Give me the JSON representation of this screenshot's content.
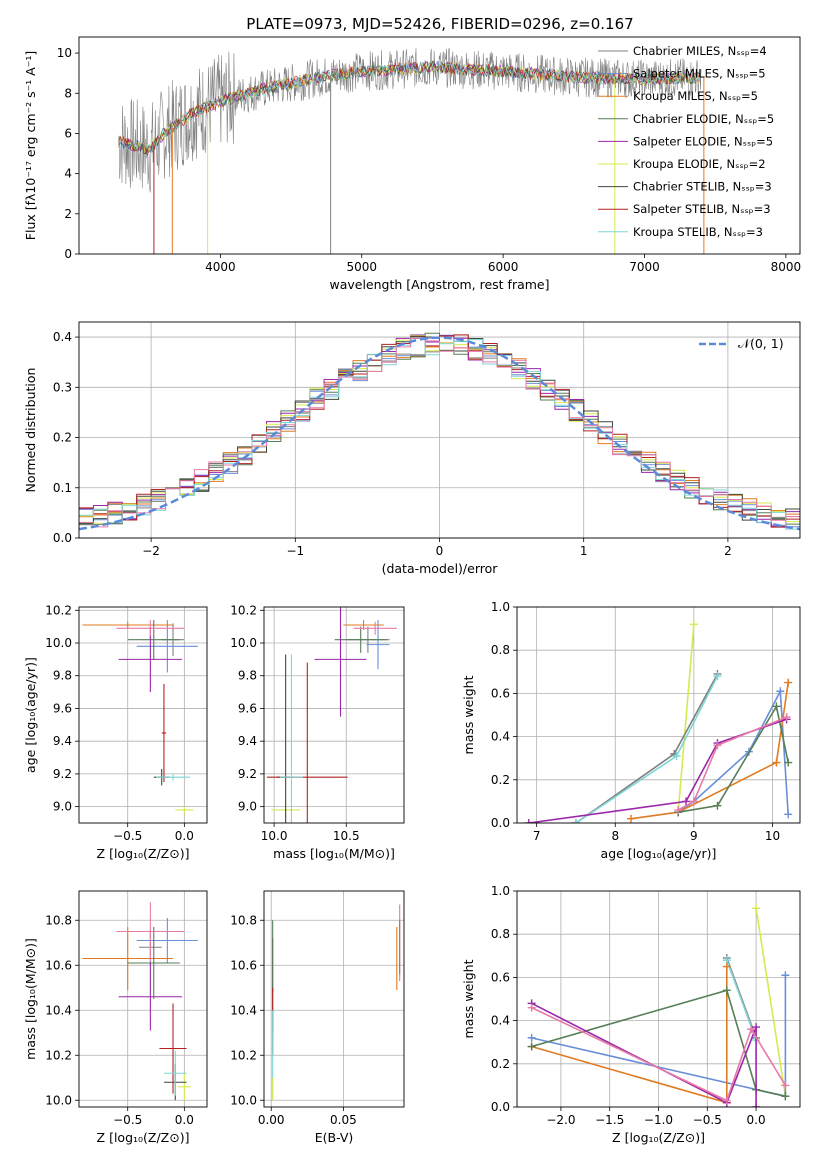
{
  "figure_title": "PLATE=0973, MJD=52426, FIBERID=0296, z=0.167",
  "colors": {
    "Chabrier MILES": "#808080",
    "Salpeter MILES": "#6a8fd8",
    "Kroupa MILES": "#e07b22",
    "Chabrier ELODIE": "#567f56",
    "Salpeter ELODIE": "#9b27a9",
    "Kroupa ELODIE": "#d7e94f",
    "Chabrier STELIB": "#3e4a3e",
    "Salpeter STELIB": "#b22222",
    "Kroupa STELIB": "#7fd6d6",
    "pinkish": "#e87aa8",
    "gaussian": "#5b8ad8"
  },
  "chart_data": [
    {
      "id": "spectrum",
      "type": "line",
      "title": "PLATE=0973, MJD=52426, FIBERID=0296, z=0.167",
      "xlabel": "wavelength [Angstrom, rest frame]",
      "ylabel": "Flux [fλ10⁻¹⁷ erg cm⁻² s⁻¹ A⁻¹]",
      "xlim": [
        3000,
        8100
      ],
      "ylim": [
        0,
        10.8
      ],
      "xticks": [
        "4000",
        "5000",
        "6000",
        "7000",
        "8000"
      ],
      "yticks": [
        "0",
        "2",
        "4",
        "6",
        "8",
        "10"
      ],
      "grid": false,
      "legend_position": "right",
      "legend": [
        "Chabrier MILES, Nₛₛₚ=4",
        "Salpeter MILES, Nₛₛₚ=5",
        "Kroupa MILES, Nₛₛₚ=5",
        "Chabrier ELODIE, Nₛₛₚ=5",
        "Salpeter ELODIE, Nₛₛₚ=5",
        "Kroupa ELODIE, Nₛₛₚ=2",
        "Chabrier STELIB, Nₛₛₚ=3",
        "Salpeter STELIB, Nₛₛₚ=3",
        "Kroupa STELIB, Nₛₛₚ=3"
      ],
      "continuum": [
        [
          3280,
          5.6
        ],
        [
          3500,
          5.2
        ],
        [
          3600,
          6.0
        ],
        [
          3800,
          7.0
        ],
        [
          4000,
          7.6
        ],
        [
          4300,
          8.2
        ],
        [
          4700,
          8.8
        ],
        [
          5000,
          9.1
        ],
        [
          5500,
          9.3
        ],
        [
          6000,
          9.1
        ],
        [
          6500,
          8.8
        ],
        [
          7000,
          8.7
        ],
        [
          7400,
          8.8
        ]
      ]
    },
    {
      "id": "residuals",
      "type": "bar",
      "xlabel": "(data-model)/error",
      "ylabel": "Normed distribution",
      "xlim": [
        -2.5,
        2.5
      ],
      "ylim": [
        0,
        0.43
      ],
      "xticks": [
        "−2",
        "−1",
        "0",
        "1",
        "2"
      ],
      "yticks": [
        "0.0",
        "0.1",
        "0.2",
        "0.3",
        "0.4"
      ],
      "grid": true,
      "legend_position": "top-right",
      "legend": [
        "𝒩(0, 1)"
      ],
      "gaussian": {
        "mean": 0,
        "sigma": 1
      }
    },
    {
      "id": "age-vs-Z",
      "type": "scatter",
      "xlabel": "Z [log₁₀(Z/Z⊙)]",
      "ylabel": "age  [log₁₀(age/yr)]",
      "xlim": [
        -0.93,
        0.2
      ],
      "ylim": [
        8.9,
        10.22
      ],
      "xticks": [
        "−0.5",
        "0.0"
      ],
      "yticks": [
        "9.0",
        "9.2",
        "9.4",
        "9.6",
        "9.8",
        "10.0",
        "10.2"
      ],
      "grid": true,
      "points": [
        {
          "model": "Chabrier MILES",
          "x": -0.1,
          "xerr": 0.1,
          "y": 10.02,
          "yerr": 0.1
        },
        {
          "model": "Salpeter MILES",
          "x": -0.15,
          "xerr": 0.27,
          "y": 9.98,
          "yerr": 0.16
        },
        {
          "model": "Kroupa MILES",
          "x": -0.5,
          "xerr": 0.4,
          "y": 10.11,
          "yerr": 0.02
        },
        {
          "model": "Chabrier ELODIE",
          "x": -0.27,
          "xerr": 0.23,
          "y": 10.02,
          "yerr": 0.12
        },
        {
          "model": "Salpeter ELODIE",
          "x": -0.3,
          "xerr": 0.28,
          "y": 9.9,
          "yerr": 0.2
        },
        {
          "model": "Kroupa ELODIE",
          "x": 0.0,
          "xerr": 0.08,
          "y": 8.98,
          "yerr": 0.02
        },
        {
          "model": "Chabrier STELIB",
          "x": -0.2,
          "xerr": 0.07,
          "y": 9.18,
          "yerr": 0.05
        },
        {
          "model": "Salpeter STELIB",
          "x": -0.18,
          "xerr": 0.02,
          "y": 9.45,
          "yerr": 0.3
        },
        {
          "model": "Kroupa STELIB",
          "x": -0.1,
          "xerr": 0.15,
          "y": 9.18,
          "yerr": 0.02
        },
        {
          "model": "pinkish",
          "x": -0.3,
          "xerr": 0.3,
          "y": 10.09,
          "yerr": 0.05
        }
      ]
    },
    {
      "id": "age-vs-mass",
      "type": "scatter",
      "xlabel": "mass [log₁₀(M/M⊙)]",
      "ylabel": "",
      "xlim": [
        9.93,
        10.9
      ],
      "ylim": [
        8.9,
        10.22
      ],
      "xticks": [
        "10.0",
        "10.5"
      ],
      "yticks": [
        "9.0",
        "9.2",
        "9.4",
        "9.6",
        "9.8",
        "10.0",
        "10.2"
      ],
      "grid": true,
      "points": [
        {
          "model": "Chabrier MILES",
          "x": 10.65,
          "xerr": 0.15,
          "y": 10.02,
          "yerr": 0.08
        },
        {
          "model": "Salpeter MILES",
          "x": 10.72,
          "xerr": 0.08,
          "y": 9.99,
          "yerr": 0.15
        },
        {
          "model": "Kroupa MILES",
          "x": 10.62,
          "xerr": 0.14,
          "y": 10.11,
          "yerr": 0.03
        },
        {
          "model": "Chabrier ELODIE",
          "x": 10.6,
          "xerr": 0.18,
          "y": 10.02,
          "yerr": 0.08
        },
        {
          "model": "Salpeter ELODIE",
          "x": 10.46,
          "xerr": 0.18,
          "y": 9.9,
          "yerr": 0.35
        },
        {
          "model": "Kroupa ELODIE",
          "x": 10.08,
          "xerr": 0.1,
          "y": 8.98,
          "yerr": 0.05
        },
        {
          "model": "Chabrier STELIB",
          "x": 10.08,
          "xerr": 0.06,
          "y": 9.18,
          "yerr": 0.75
        },
        {
          "model": "Salpeter STELIB",
          "x": 10.23,
          "xerr": 0.28,
          "y": 9.18,
          "yerr": 0.7
        },
        {
          "model": "Kroupa STELIB",
          "x": 10.12,
          "xerr": 0.08,
          "y": 9.18,
          "yerr": 0.75
        },
        {
          "model": "pinkish",
          "x": 10.7,
          "xerr": 0.15,
          "y": 10.09,
          "yerr": 0.04
        }
      ]
    },
    {
      "id": "mass-weight-vs-age",
      "type": "line",
      "xlabel": "age  [log₁₀(age/yr)]",
      "ylabel": "mass weight",
      "xlim": [
        6.75,
        10.35
      ],
      "ylim": [
        0,
        1.0
      ],
      "xticks": [
        "7",
        "8",
        "9",
        "10"
      ],
      "yticks": [
        "0.0",
        "0.2",
        "0.4",
        "0.6",
        "0.8",
        "1.0"
      ],
      "grid": true,
      "series": [
        {
          "model": "Kroupa ELODIE",
          "x": [
            8.8,
            9.0
          ],
          "values": [
            0.05,
            0.92
          ]
        },
        {
          "model": "Chabrier MILES",
          "x": [
            7.5,
            8.75,
            9.3
          ],
          "values": [
            0.0,
            0.32,
            0.69
          ]
        },
        {
          "model": "Kroupa STELIB",
          "x": [
            7.5,
            8.78,
            9.3
          ],
          "values": [
            0.0,
            0.31,
            0.68
          ]
        },
        {
          "model": "Salpeter MILES",
          "x": [
            8.8,
            9.0,
            9.7,
            10.1,
            10.2
          ],
          "values": [
            0.05,
            0.1,
            0.33,
            0.61,
            0.04
          ]
        },
        {
          "model": "Kroupa MILES",
          "x": [
            8.2,
            8.8,
            10.05,
            10.2
          ],
          "values": [
            0.02,
            0.05,
            0.28,
            0.65
          ]
        },
        {
          "model": "Chabrier ELODIE",
          "x": [
            8.8,
            9.3,
            10.05,
            10.2
          ],
          "values": [
            0.05,
            0.08,
            0.54,
            0.28
          ]
        },
        {
          "model": "Salpeter ELODIE",
          "x": [
            6.9,
            8.9,
            9.3,
            10.18
          ],
          "values": [
            0.0,
            0.1,
            0.37,
            0.48
          ]
        },
        {
          "model": "pinkish",
          "x": [
            8.8,
            9.0,
            9.3,
            10.18
          ],
          "values": [
            0.06,
            0.1,
            0.36,
            0.49
          ]
        }
      ]
    },
    {
      "id": "mass-vs-Z",
      "type": "scatter",
      "xlabel": "Z [log₁₀(Z/Z⊙)]",
      "ylabel": "mass [log₁₀(M/M⊙)]",
      "xlim": [
        -0.93,
        0.2
      ],
      "ylim": [
        9.97,
        10.93
      ],
      "xticks": [
        "−0.5",
        "0.0"
      ],
      "yticks": [
        "10.0",
        "10.2",
        "10.4",
        "10.6",
        "10.8"
      ],
      "grid": true,
      "points": [
        {
          "model": "Chabrier MILES",
          "x": -0.3,
          "xerr": 0.1,
          "y": 10.68,
          "yerr": 0.08
        },
        {
          "model": "Salpeter MILES",
          "x": -0.15,
          "xerr": 0.27,
          "y": 10.71,
          "yerr": 0.1
        },
        {
          "model": "Kroupa MILES",
          "x": -0.5,
          "xerr": 0.4,
          "y": 10.63,
          "yerr": 0.14
        },
        {
          "model": "Chabrier ELODIE",
          "x": -0.27,
          "xerr": 0.23,
          "y": 10.61,
          "yerr": 0.16
        },
        {
          "model": "Salpeter ELODIE",
          "x": -0.3,
          "xerr": 0.28,
          "y": 10.46,
          "yerr": 0.15
        },
        {
          "model": "Kroupa ELODIE",
          "x": 0.0,
          "xerr": 0.06,
          "y": 10.06,
          "yerr": 0.06
        },
        {
          "model": "Chabrier STELIB",
          "x": -0.08,
          "xerr": 0.1,
          "y": 10.08,
          "yerr": 0.08
        },
        {
          "model": "Salpeter STELIB",
          "x": -0.1,
          "xerr": 0.12,
          "y": 10.23,
          "yerr": 0.2
        },
        {
          "model": "Kroupa STELIB",
          "x": -0.08,
          "xerr": 0.1,
          "y": 10.12,
          "yerr": 0.1
        },
        {
          "model": "pinkish",
          "x": -0.3,
          "xerr": 0.3,
          "y": 10.75,
          "yerr": 0.13
        }
      ]
    },
    {
      "id": "mass-vs-ebv",
      "type": "scatter",
      "xlabel": "E(B-V)",
      "ylabel": "",
      "xlim": [
        -0.005,
        0.092
      ],
      "ylim": [
        9.97,
        10.93
      ],
      "xticks": [
        "0.00",
        "0.05"
      ],
      "yticks": [
        "10.0",
        "10.2",
        "10.4",
        "10.6",
        "10.8"
      ],
      "grid": true,
      "points": [
        {
          "model": "Salpeter ELODIE",
          "x": 0.001,
          "xerr": 0,
          "y": 10.6,
          "yerr": 0.12
        },
        {
          "model": "Chabrier ELODIE",
          "x": 0.001,
          "xerr": 0,
          "y": 10.55,
          "yerr": 0.25
        },
        {
          "model": "Salpeter STELIB",
          "x": 0.001,
          "xerr": 0,
          "y": 10.35,
          "yerr": 0.15
        },
        {
          "model": "Kroupa STELIB",
          "x": 0.001,
          "xerr": 0,
          "y": 10.2,
          "yerr": 0.2
        },
        {
          "model": "Kroupa ELODIE",
          "x": 0.001,
          "xerr": 0,
          "y": 10.05,
          "yerr": 0.05
        },
        {
          "model": "Kroupa MILES",
          "x": 0.087,
          "xerr": 0,
          "y": 10.63,
          "yerr": 0.14
        },
        {
          "model": "pinkish",
          "x": 0.089,
          "xerr": 0,
          "y": 10.7,
          "yerr": 0.17
        },
        {
          "model": "Chabrier MILES",
          "x": 0.089,
          "xerr": 0,
          "y": 10.68,
          "yerr": 0.12
        }
      ]
    },
    {
      "id": "mass-weight-vs-Z",
      "type": "line",
      "xlabel": "Z [log₁₀(Z/Z⊙)]",
      "ylabel": "mass weight",
      "xlim": [
        -2.45,
        0.45
      ],
      "ylim": [
        0,
        1.0
      ],
      "xticks": [
        "−2.0",
        "−1.5",
        "−1.0",
        "−0.5",
        "0.0"
      ],
      "yticks": [
        "0.0",
        "0.2",
        "0.4",
        "0.6",
        "0.8",
        "1.0"
      ],
      "grid": true,
      "series": [
        {
          "model": "Kroupa ELODIE",
          "x": [
            0.0,
            0.3
          ],
          "values": [
            0.92,
            0.05
          ]
        },
        {
          "model": "Chabrier MILES",
          "x": [
            -0.3,
            0.0
          ],
          "values": [
            0.69,
            0.32
          ]
        },
        {
          "model": "Kroupa STELIB",
          "x": [
            -0.3,
            0.0
          ],
          "values": [
            0.68,
            0.31
          ]
        },
        {
          "model": "Salpeter MILES",
          "x": [
            -2.3,
            0.3,
            0.3
          ],
          "values": [
            0.32,
            0.05,
            0.61
          ]
        },
        {
          "model": "Kroupa MILES",
          "x": [
            -2.3,
            -0.3,
            -0.3
          ],
          "values": [
            0.28,
            0.02,
            0.65
          ]
        },
        {
          "model": "Chabrier ELODIE",
          "x": [
            -2.3,
            -0.3,
            0.0,
            0.3
          ],
          "values": [
            0.28,
            0.54,
            0.08,
            0.05
          ]
        },
        {
          "model": "Salpeter ELODIE",
          "x": [
            -2.3,
            -0.3,
            0.0,
            0.0
          ],
          "values": [
            0.48,
            0.02,
            0.37,
            0.0
          ]
        },
        {
          "model": "pinkish",
          "x": [
            -2.3,
            -0.3,
            -0.05,
            0.3
          ],
          "values": [
            0.46,
            0.03,
            0.36,
            0.1
          ]
        }
      ]
    }
  ]
}
